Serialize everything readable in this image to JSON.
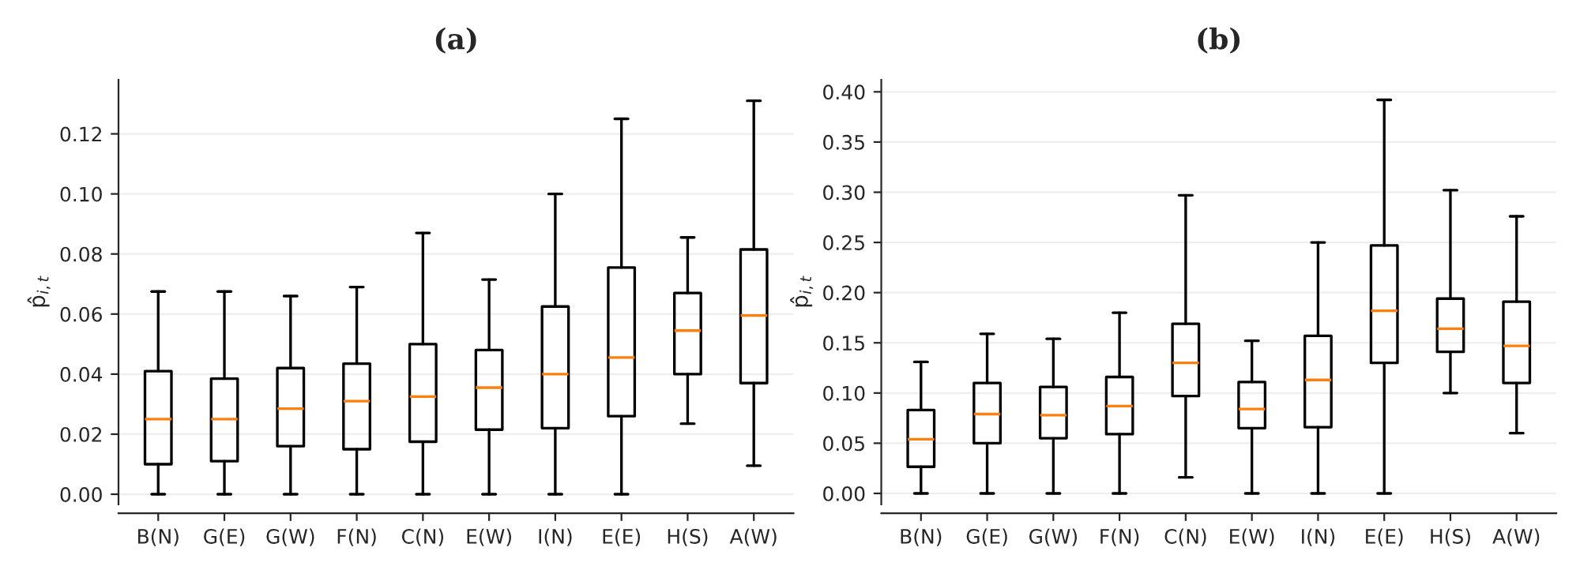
{
  "chart_data": [
    {
      "type": "box",
      "title": "(a)",
      "ylabel": "p̂$_{i,t}$",
      "categories": [
        "B(N)",
        "G(E)",
        "G(W)",
        "F(N)",
        "C(N)",
        "E(W)",
        "I(N)",
        "E(E)",
        "H(S)",
        "A(W)"
      ],
      "boxes": [
        {
          "low": 0,
          "q1": 0.01,
          "median": 0.025,
          "q3": 0.041,
          "high": 0.0675
        },
        {
          "low": 0,
          "q1": 0.011,
          "median": 0.025,
          "q3": 0.0385,
          "high": 0.0675
        },
        {
          "low": 0,
          "q1": 0.016,
          "median": 0.0285,
          "q3": 0.042,
          "high": 0.066
        },
        {
          "low": 0,
          "q1": 0.015,
          "median": 0.031,
          "q3": 0.0435,
          "high": 0.069
        },
        {
          "low": 0,
          "q1": 0.0175,
          "median": 0.0325,
          "q3": 0.05,
          "high": 0.087
        },
        {
          "low": 0,
          "q1": 0.0215,
          "median": 0.0355,
          "q3": 0.048,
          "high": 0.0715
        },
        {
          "low": 0,
          "q1": 0.022,
          "median": 0.04,
          "q3": 0.0625,
          "high": 0.1
        },
        {
          "low": 0,
          "q1": 0.026,
          "median": 0.0455,
          "q3": 0.0755,
          "high": 0.125
        },
        {
          "low": 0.0235,
          "q1": 0.04,
          "median": 0.0545,
          "q3": 0.067,
          "high": 0.0855
        },
        {
          "low": 0.0095,
          "q1": 0.037,
          "median": 0.0595,
          "q3": 0.0815,
          "high": 0.131
        }
      ],
      "ylim": [
        -0.0034,
        0.138
      ],
      "yticks": [
        {
          "value": 0,
          "label": "0.00"
        },
        {
          "value": 0.02,
          "label": "0.02"
        },
        {
          "value": 0.04,
          "label": "0.04"
        },
        {
          "value": 0.06,
          "label": "0.06"
        },
        {
          "value": 0.08,
          "label": "0.08"
        },
        {
          "value": 0.1,
          "label": "0.10"
        },
        {
          "value": 0.12,
          "label": "0.12"
        }
      ],
      "grid": "y"
    },
    {
      "type": "box",
      "title": "(b)",
      "ylabel": "p̂$_{i,t}$",
      "categories": [
        "B(N)",
        "G(E)",
        "G(W)",
        "F(N)",
        "C(N)",
        "E(W)",
        "I(N)",
        "E(E)",
        "H(S)",
        "A(W)"
      ],
      "boxes": [
        {
          "low": 0,
          "q1": 0.0265,
          "median": 0.054,
          "q3": 0.083,
          "high": 0.131
        },
        {
          "low": 0,
          "q1": 0.05,
          "median": 0.079,
          "q3": 0.11,
          "high": 0.159
        },
        {
          "low": 0,
          "q1": 0.055,
          "median": 0.078,
          "q3": 0.106,
          "high": 0.154
        },
        {
          "low": 0,
          "q1": 0.059,
          "median": 0.087,
          "q3": 0.116,
          "high": 0.18
        },
        {
          "low": 0.016,
          "q1": 0.097,
          "median": 0.13,
          "q3": 0.169,
          "high": 0.297
        },
        {
          "low": 0,
          "q1": 0.065,
          "median": 0.084,
          "q3": 0.111,
          "high": 0.152
        },
        {
          "low": 0,
          "q1": 0.066,
          "median": 0.113,
          "q3": 0.157,
          "high": 0.25
        },
        {
          "low": 0,
          "q1": 0.13,
          "median": 0.182,
          "q3": 0.247,
          "high": 0.392
        },
        {
          "low": 0.1,
          "q1": 0.141,
          "median": 0.164,
          "q3": 0.194,
          "high": 0.302
        },
        {
          "low": 0.06,
          "q1": 0.11,
          "median": 0.147,
          "q3": 0.191,
          "high": 0.276
        }
      ],
      "ylim": [
        -0.011,
        0.412
      ],
      "yticks": [
        {
          "value": 0,
          "label": "0.00"
        },
        {
          "value": 0.05,
          "label": "0.05"
        },
        {
          "value": 0.1,
          "label": "0.10"
        },
        {
          "value": 0.15,
          "label": "0.15"
        },
        {
          "value": 0.2,
          "label": "0.20"
        },
        {
          "value": 0.25,
          "label": "0.25"
        },
        {
          "value": 0.3,
          "label": "0.30"
        },
        {
          "value": 0.35,
          "label": "0.35"
        },
        {
          "value": 0.4,
          "label": "0.40"
        }
      ],
      "grid": "y"
    }
  ]
}
